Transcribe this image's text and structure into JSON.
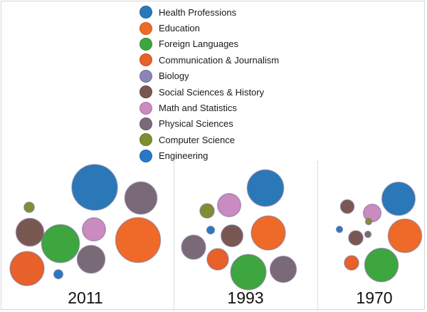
{
  "legend": {
    "items": [
      {
        "label": "Health Professions",
        "color": "#2b78b8"
      },
      {
        "label": "Education",
        "color": "#ef6a28"
      },
      {
        "label": "Foreign Languages",
        "color": "#3ea63e"
      },
      {
        "label": "Communication & Journalism",
        "color": "#e8602a"
      },
      {
        "label": "Biology",
        "color": "#8a84b8"
      },
      {
        "label": "Social Sciences & History",
        "color": "#7a5852"
      },
      {
        "label": "Math and Statistics",
        "color": "#c98bc0"
      },
      {
        "label": "Physical Sciences",
        "color": "#7a6a78"
      },
      {
        "label": "Computer Science",
        "color": "#7e8f33"
      },
      {
        "label": "Engineering",
        "color": "#2a78c4"
      }
    ]
  },
  "chart_data": {
    "type": "bubble",
    "panels": [
      {
        "year": "2011",
        "bubbles": [
          {
            "category": "Health Professions",
            "size": 1.0
          },
          {
            "category": "Physical Sciences",
            "size": 0.5
          },
          {
            "category": "Computer Science",
            "size": 0.05
          },
          {
            "category": "Math and Statistics",
            "size": 0.26
          },
          {
            "category": "Social Sciences & History",
            "size": 0.37
          },
          {
            "category": "Foreign Languages",
            "size": 0.69
          },
          {
            "category": "Education",
            "size": 0.97
          },
          {
            "category": "Communication & Journalism",
            "size": 0.56
          },
          {
            "category": "Physical Sciences",
            "size": 0.37
          },
          {
            "category": "Engineering",
            "size": 0.04
          }
        ]
      },
      {
        "year": "1993",
        "bubbles": [
          {
            "category": "Health Professions",
            "size": 0.64
          },
          {
            "category": "Computer Science",
            "size": 0.1
          },
          {
            "category": "Math and Statistics",
            "size": 0.26
          },
          {
            "category": "Education",
            "size": 0.56
          },
          {
            "category": "Social Sciences & History",
            "size": 0.23
          },
          {
            "category": "Engineering",
            "size": 0.03
          },
          {
            "category": "Physical Sciences",
            "size": 0.28
          },
          {
            "category": "Communication & Journalism",
            "size": 0.22
          },
          {
            "category": "Foreign Languages",
            "size": 0.6
          },
          {
            "category": "Physical Sciences",
            "size": 0.33
          }
        ]
      },
      {
        "year": "1970",
        "bubbles": [
          {
            "category": "Health Professions",
            "size": 0.53
          },
          {
            "category": "Social Sciences & History",
            "size": 0.09
          },
          {
            "category": "Math and Statistics",
            "size": 0.15
          },
          {
            "category": "Computer Science",
            "size": 0.02
          },
          {
            "category": "Engineering",
            "size": 0.02
          },
          {
            "category": "Social Sciences & History",
            "size": 0.1
          },
          {
            "category": "Physical Sciences",
            "size": 0.02
          },
          {
            "category": "Education",
            "size": 0.54
          },
          {
            "category": "Communication & Journalism",
            "size": 0.1
          },
          {
            "category": "Foreign Languages",
            "size": 0.54
          }
        ]
      }
    ]
  }
}
